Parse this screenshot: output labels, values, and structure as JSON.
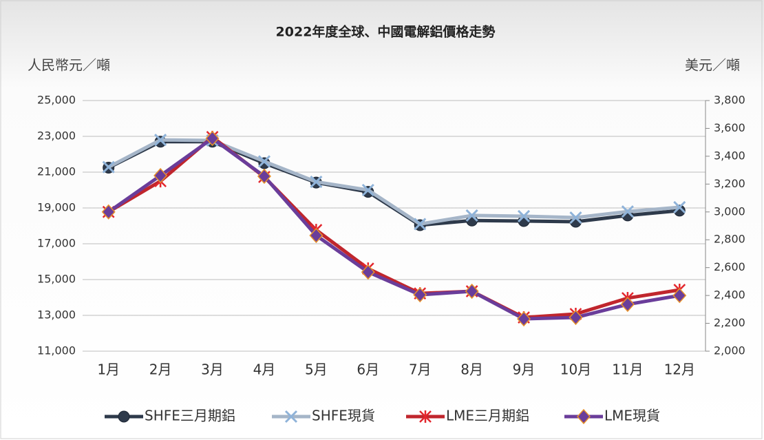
{
  "chart_data": {
    "type": "line",
    "title": "2022年度全球、中國電解鋁價格走勢",
    "y_label": "人民幣元／噸",
    "y2_label": "美元／噸",
    "categories": [
      "1月",
      "2月",
      "3月",
      "4月",
      "5月",
      "6月",
      "7月",
      "8月",
      "9月",
      "10月",
      "11月",
      "12月"
    ],
    "series": [
      {
        "name": "SHFE三月期鋁",
        "color": "#2e3a4b",
        "marker": "circle",
        "values": [
          21250,
          22700,
          22700,
          21500,
          20420,
          19900,
          18040,
          18300,
          18270,
          18230,
          18580,
          18850
        ]
      },
      {
        "name": "SHFE現貨",
        "color": "#a5b5c8",
        "marker": "x",
        "values": [
          21280,
          22800,
          22770,
          21600,
          20460,
          20000,
          18100,
          18580,
          18540,
          18460,
          18800,
          19040
        ]
      },
      {
        "name": "LME三月期鋁",
        "color": "#c0262d",
        "marker": "asterisk",
        "axis": "y2",
        "values": [
          3000,
          3221,
          3538,
          3251,
          2870,
          2593,
          2415,
          2430,
          2242,
          2267,
          2381,
          2440
        ]
      },
      {
        "name": "LME現貨",
        "color": "#6a3d9a",
        "marker": "diamond",
        "axis": "y2",
        "values": [
          3000,
          3261,
          3528,
          3256,
          2831,
          2568,
          2405,
          2430,
          2232,
          2242,
          2336,
          2400
        ]
      }
    ],
    "ylim": [
      11000,
      25000
    ],
    "yticks": [
      {
        "value": 11000,
        "label": "11,000"
      },
      {
        "value": 13000,
        "label": "13,000"
      },
      {
        "value": 15000,
        "label": "15,000"
      },
      {
        "value": 17000,
        "label": "17,000"
      },
      {
        "value": 19000,
        "label": "19,000"
      },
      {
        "value": 21000,
        "label": "21,000"
      },
      {
        "value": 23000,
        "label": "23,000"
      },
      {
        "value": 25000,
        "label": "25,000"
      }
    ],
    "y2lim": [
      2000,
      3800
    ],
    "y2ticks": [
      {
        "value": 2000,
        "label": "2,000"
      },
      {
        "value": 2200,
        "label": "2,200"
      },
      {
        "value": 2400,
        "label": "2,400"
      },
      {
        "value": 2600,
        "label": "2,600"
      },
      {
        "value": 2800,
        "label": "2,800"
      },
      {
        "value": 3000,
        "label": "3,000"
      },
      {
        "value": 3200,
        "label": "3,200"
      },
      {
        "value": 3400,
        "label": "3,400"
      },
      {
        "value": 3600,
        "label": "3,600"
      },
      {
        "value": 3800,
        "label": "3,800"
      }
    ],
    "grid": true,
    "legend": "bottom"
  }
}
